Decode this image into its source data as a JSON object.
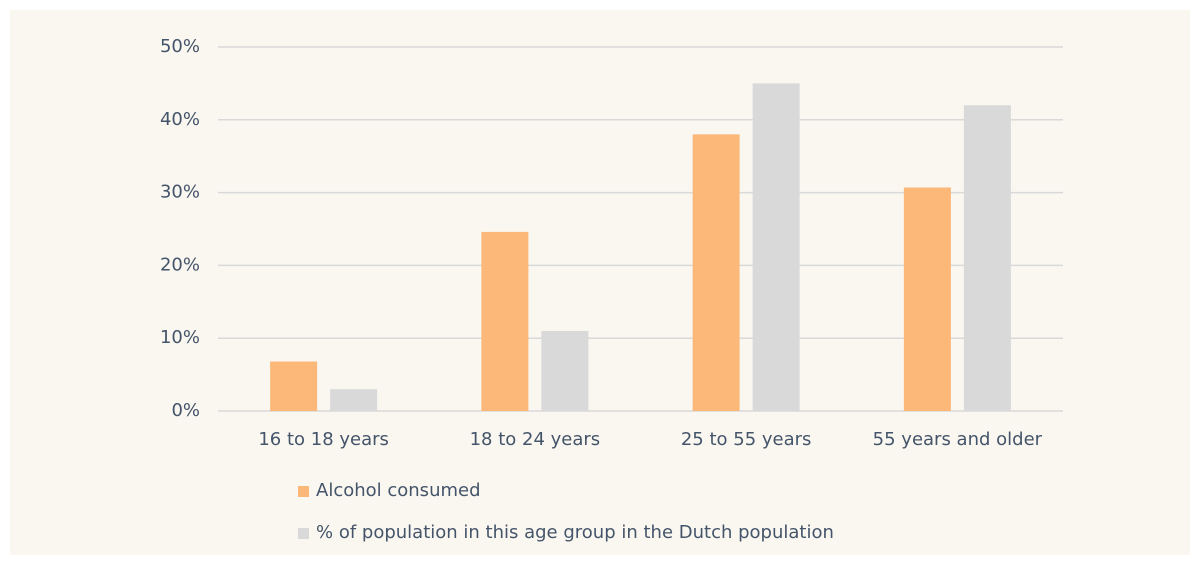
{
  "chart_data": {
    "type": "bar",
    "categories": [
      "16 to 18 years",
      "18 to 24 years",
      "25 to 55 years",
      "55 years and older"
    ],
    "series": [
      {
        "name": "Alcohol consumed",
        "color": "#fbb879",
        "values": [
          6.8,
          24.6,
          38,
          30.7
        ]
      },
      {
        "name": "% of population in this age group in the Dutch population",
        "color": "#d9d9d9",
        "values": [
          3,
          11,
          45,
          42
        ]
      }
    ],
    "ylim": [
      0,
      50
    ],
    "yticks": [
      {
        "value": 0,
        "label": "0%"
      },
      {
        "value": 10,
        "label": "10%"
      },
      {
        "value": 20,
        "label": "20%"
      },
      {
        "value": 30,
        "label": "30%"
      },
      {
        "value": 40,
        "label": "40%"
      },
      {
        "value": 50,
        "label": "50%"
      }
    ],
    "grid": true,
    "legend": "bottom"
  }
}
